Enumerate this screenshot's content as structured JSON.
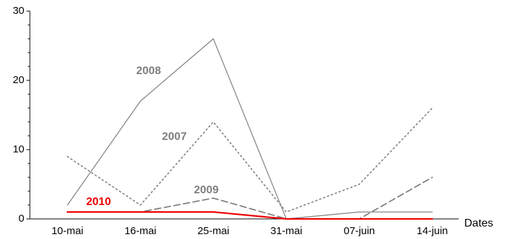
{
  "chart_data": {
    "type": "line",
    "title": "",
    "xlabel": "Dates",
    "ylabel": "",
    "ylim": [
      0,
      30
    ],
    "y_major_ticks": [
      0,
      10,
      20,
      30
    ],
    "y_minor_step": 2,
    "grid": false,
    "legend": "inline labels on lines",
    "categories": [
      "10-mai",
      "16-mai",
      "25-mai",
      "31-mai",
      "07-juin",
      "14-juin"
    ],
    "series": [
      {
        "name": "2008",
        "values": [
          2,
          17,
          26,
          0,
          1,
          1
        ],
        "color": "#7f7f7f",
        "dash": "solid"
      },
      {
        "name": "2007",
        "values": [
          9,
          2,
          14,
          1,
          5,
          16
        ],
        "color": "#7f7f7f",
        "dash": "dotted"
      },
      {
        "name": "2009",
        "values": [
          1,
          1,
          3,
          0,
          0,
          6
        ],
        "color": "#7f7f7f",
        "dash": "dashed"
      },
      {
        "name": "2010",
        "values": [
          1,
          1,
          1,
          0,
          0,
          0
        ],
        "color": "#ee0000",
        "dash": "solid"
      }
    ]
  }
}
